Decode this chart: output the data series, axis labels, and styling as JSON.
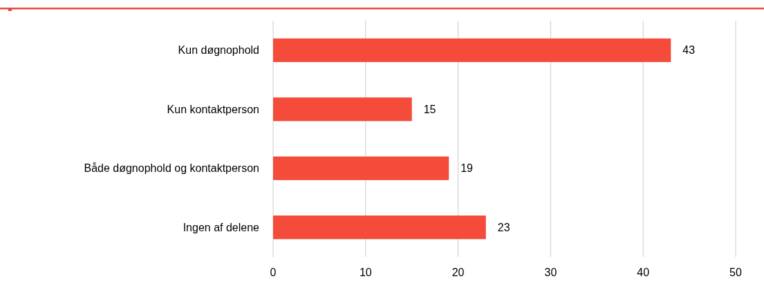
{
  "chart_data": {
    "type": "bar",
    "orientation": "horizontal",
    "categories": [
      "Kun døgnophold",
      "Kun kontaktperson",
      "Både døgnophold og kontaktperson",
      "Ingen af delene"
    ],
    "values": [
      43,
      15,
      19,
      23
    ],
    "color": "#f44b3b",
    "xlim": [
      0,
      50
    ],
    "xticks": [
      0,
      10,
      20,
      30,
      40,
      50
    ],
    "grid": "x",
    "data_labels": true
  }
}
